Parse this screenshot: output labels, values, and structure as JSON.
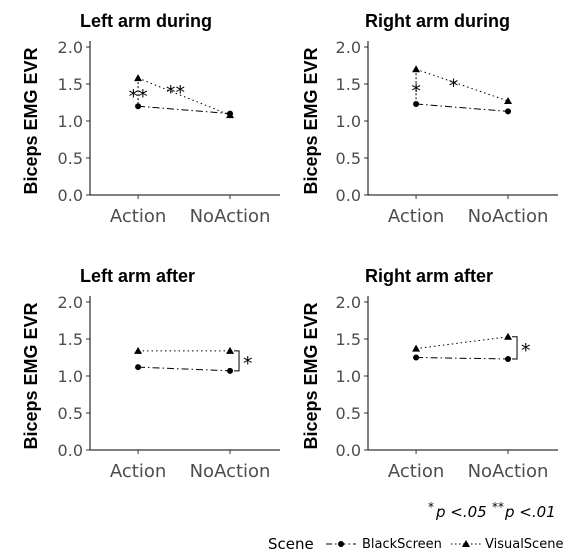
{
  "chart_data": [
    {
      "type": "line",
      "title": "Left arm during",
      "ylabel": "Biceps EMG EVR",
      "categories": [
        "Action",
        "NoAction"
      ],
      "ylim": [
        0,
        2
      ],
      "yticks": [
        "0.0",
        "0.5",
        "1.0",
        "1.5",
        "2.0"
      ],
      "series": [
        {
          "name": "BlackScreen",
          "values": [
            1.2,
            1.1
          ]
        },
        {
          "name": "VisualScene",
          "values": [
            1.58,
            1.08
          ]
        }
      ],
      "annotations": [
        {
          "text": "**",
          "category": "Action",
          "y": 1.38
        },
        {
          "text": "**",
          "category_pos": 0.45,
          "y": 1.43
        }
      ]
    },
    {
      "type": "line",
      "title": "Right arm during",
      "ylabel": "Biceps EMG EVR",
      "categories": [
        "Action",
        "NoAction"
      ],
      "ylim": [
        0,
        2
      ],
      "yticks": [
        "0.0",
        "0.5",
        "1.0",
        "1.5",
        "2.0"
      ],
      "series": [
        {
          "name": "BlackScreen",
          "values": [
            1.23,
            1.13
          ]
        },
        {
          "name": "VisualScene",
          "values": [
            1.7,
            1.27
          ]
        }
      ],
      "annotations": [
        {
          "text": "*",
          "category": "Action",
          "y": 1.45
        },
        {
          "text": "*",
          "category_pos": 0.45,
          "y": 1.52
        }
      ]
    },
    {
      "type": "line",
      "title": "Left arm after",
      "ylabel": "Biceps EMG EVR",
      "categories": [
        "Action",
        "NoAction"
      ],
      "ylim": [
        0,
        2
      ],
      "yticks": [
        "0.0",
        "0.5",
        "1.0",
        "1.5",
        "2.0"
      ],
      "series": [
        {
          "name": "BlackScreen",
          "values": [
            1.12,
            1.07
          ]
        },
        {
          "name": "VisualScene",
          "values": [
            1.34,
            1.34
          ]
        }
      ],
      "annotations": [
        {
          "text": "*",
          "bracket": true,
          "y_top": 1.34,
          "y_bottom": 1.07
        }
      ]
    },
    {
      "type": "line",
      "title": "Right arm after",
      "ylabel": "Biceps EMG EVR",
      "categories": [
        "Action",
        "NoAction"
      ],
      "ylim": [
        0,
        2
      ],
      "yticks": [
        "0.0",
        "0.5",
        "1.0",
        "1.5",
        "2.0"
      ],
      "series": [
        {
          "name": "BlackScreen",
          "values": [
            1.25,
            1.23
          ]
        },
        {
          "name": "VisualScene",
          "values": [
            1.37,
            1.53
          ]
        }
      ],
      "annotations": [
        {
          "text": "*",
          "bracket": true,
          "y_top": 1.53,
          "y_bottom": 1.23
        }
      ]
    }
  ],
  "note": {
    "star1": "*",
    "p1": "p <.05",
    "star2": "**",
    "p2": "p <.01"
  },
  "legend": {
    "title": "Scene",
    "items": [
      {
        "label": "BlackScreen",
        "marker": "circle",
        "linestyle": "dashdot"
      },
      {
        "label": "VisualScene",
        "marker": "triangle",
        "linestyle": "dotted"
      }
    ],
    "position": "bottom"
  }
}
